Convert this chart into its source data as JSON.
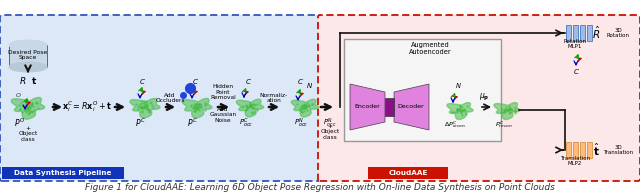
{
  "fig_width": 6.4,
  "fig_height": 1.95,
  "dpi": 100,
  "bg_color": "#ffffff",
  "left_panel_bg": "#dce8f8",
  "right_panel_bg": "#fce8e8",
  "left_border_color": "#3355bb",
  "right_border_color": "#cc1100",
  "left_label": "Data Synthesis Pipeline",
  "right_label": "CloudAAE",
  "left_label_bg": "#1133bb",
  "right_label_bg": "#cc1100",
  "left_label_color": "#ffffff",
  "right_label_color": "#ffffff",
  "title_text": "Figure 1 for CloudAAE: Learning 6D Object Pose Regression with On-line Data Synthesis on Point Clouds",
  "title_fontsize": 6.5,
  "caption_color": "#333333",
  "arrow_color": "#111111",
  "green_cloud_color": "#44bb44",
  "axis_red": "#cc0000",
  "axis_green": "#00aa00",
  "axis_blue": "#0000cc",
  "encoder_color": "#dd77dd",
  "decoder_color": "#dd77dd",
  "mlp1_color": "#99bbee",
  "mlp2_color": "#ffbb77",
  "cyl_color": "#c8d8e8",
  "cyl_edge": "#666666",
  "ae_box_color": "#999999",
  "ae_box_bg": "#f5f5f5",
  "mid_sq_color": "#881188",
  "black_line": "#111111",
  "note_fontsize": 4.2,
  "label_fontsize": 5.0,
  "eq_fontsize": 5.8
}
